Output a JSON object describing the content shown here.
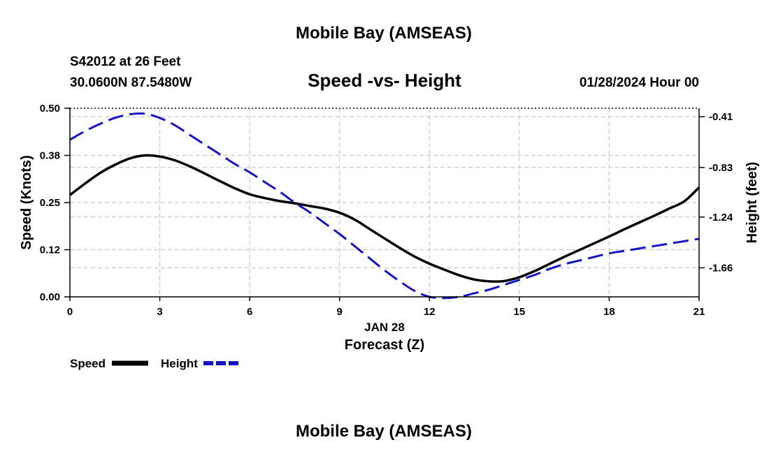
{
  "chart_data": {
    "type": "line",
    "title": "Mobile Bay (AMSEAS)",
    "subtitle": "Speed -vs- Height",
    "station": "S42012 at 26 Feet",
    "location": "30.0600N  87.5480W",
    "datetime": "01/28/2024 Hour 00",
    "footer_title": "Mobile Bay (AMSEAS)",
    "xlabel": "Forecast (Z)",
    "xsublabel": "JAN 28",
    "ylabel": "Speed (Knots)",
    "y2label": "Height (feet)",
    "xlim": [
      0,
      21
    ],
    "ylim": [
      0,
      0.5
    ],
    "y2lim": [
      -1.9,
      -0.34
    ],
    "x_ticks": [
      0,
      3,
      6,
      9,
      12,
      15,
      18,
      21
    ],
    "x_tick_labels": [
      "0",
      "3",
      "6",
      "9",
      "12",
      "15",
      "18",
      "21"
    ],
    "y_ticks": [
      0.0,
      0.125,
      0.25,
      0.375,
      0.5
    ],
    "y_tick_labels": [
      "0.00",
      "0.12",
      "0.25",
      "0.38",
      "0.50"
    ],
    "y2_ticks": [
      -0.41,
      -0.83,
      -1.24,
      -1.66
    ],
    "y2_tick_labels": [
      "-0.41",
      "-0.83",
      "-1.24",
      "-1.66"
    ],
    "grid": true,
    "legend": "bottom-left",
    "series": [
      {
        "name": "Speed",
        "axis": "left",
        "color": "#000000",
        "style": "solid",
        "x": [
          0,
          0.5,
          1,
          1.5,
          2,
          2.5,
          3,
          3.5,
          4,
          4.5,
          5,
          5.5,
          6,
          6.5,
          7,
          7.5,
          8,
          8.5,
          9,
          9.5,
          10,
          10.5,
          11,
          11.5,
          12,
          12.5,
          13,
          13.5,
          14,
          14.5,
          15,
          15.5,
          16,
          16.5,
          17,
          17.5,
          18,
          18.5,
          19,
          19.5,
          20,
          20.5,
          21
        ],
        "values": [
          0.27,
          0.3,
          0.328,
          0.35,
          0.367,
          0.375,
          0.372,
          0.362,
          0.346,
          0.327,
          0.307,
          0.288,
          0.272,
          0.262,
          0.254,
          0.248,
          0.241,
          0.234,
          0.223,
          0.205,
          0.18,
          0.155,
          0.13,
          0.107,
          0.088,
          0.072,
          0.057,
          0.046,
          0.041,
          0.042,
          0.052,
          0.068,
          0.087,
          0.106,
          0.124,
          0.142,
          0.16,
          0.179,
          0.197,
          0.215,
          0.234,
          0.253,
          0.29
        ]
      },
      {
        "name": "Height",
        "axis": "right",
        "color": "#1414c8",
        "style": "dashed",
        "x": [
          0,
          0.5,
          1,
          1.5,
          2,
          2.5,
          3,
          3.5,
          4,
          4.5,
          5,
          5.5,
          6,
          6.5,
          7,
          7.5,
          8,
          8.5,
          9,
          9.5,
          10,
          10.5,
          11,
          11.5,
          12,
          12.5,
          13,
          13.5,
          14,
          14.5,
          15,
          15.5,
          16,
          16.5,
          17,
          17.5,
          18,
          18.5,
          19,
          19.5,
          20,
          20.5,
          21
        ],
        "values": [
          -0.6,
          -0.53,
          -0.47,
          -0.42,
          -0.39,
          -0.385,
          -0.42,
          -0.48,
          -0.56,
          -0.64,
          -0.72,
          -0.8,
          -0.87,
          -0.95,
          -1.03,
          -1.12,
          -1.2,
          -1.29,
          -1.38,
          -1.48,
          -1.58,
          -1.68,
          -1.77,
          -1.85,
          -1.9,
          -1.91,
          -1.9,
          -1.87,
          -1.84,
          -1.8,
          -1.76,
          -1.72,
          -1.67,
          -1.63,
          -1.6,
          -1.57,
          -1.54,
          -1.52,
          -1.5,
          -1.48,
          -1.46,
          -1.44,
          -1.42
        ]
      }
    ]
  }
}
